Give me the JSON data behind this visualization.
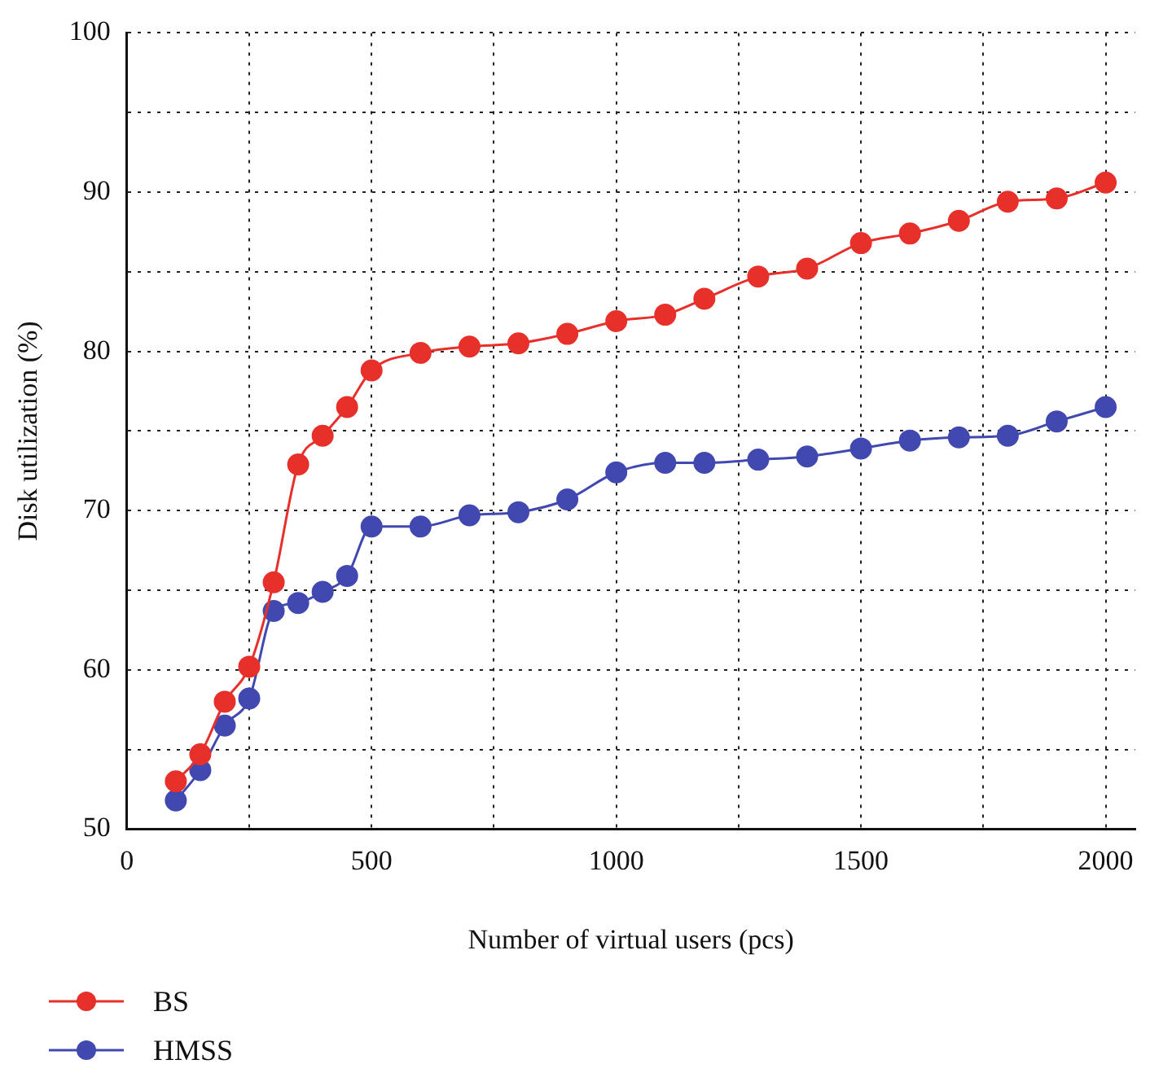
{
  "chart_data": {
    "type": "line",
    "xlabel": "Number of virtual users (pcs)",
    "ylabel": "Disk utilization (%)",
    "xlim": [
      0,
      2060
    ],
    "xticks": [
      0,
      {
        "value": 250,
        "label": null
      },
      500,
      {
        "value": 750,
        "label": null
      },
      1000,
      {
        "value": 1250,
        "label": null
      },
      1500,
      {
        "value": 1750,
        "label": null
      },
      2000
    ],
    "ylim": [
      50,
      100
    ],
    "yticks": [
      50,
      {
        "value": 55,
        "label": null
      },
      60,
      {
        "value": 65,
        "label": null
      },
      70,
      {
        "value": 75,
        "label": null
      },
      80,
      {
        "value": 85,
        "label": null
      },
      90,
      {
        "value": 95,
        "label": null
      },
      100
    ],
    "grid": true,
    "legend": "bottom left",
    "marker": "circle",
    "line_style": "solid",
    "series": [
      {
        "name": "BS",
        "color": "#e8302a",
        "x": [
          100,
          150,
          200,
          250,
          300,
          350,
          400,
          450,
          500,
          600,
          700,
          800,
          900,
          1000,
          1100,
          1180,
          1290,
          1390,
          1500,
          1600,
          1700,
          1800,
          1900,
          2000
        ],
        "values": [
          53.0,
          54.7,
          58.0,
          60.2,
          65.5,
          72.9,
          74.7,
          76.5,
          78.8,
          79.9,
          80.3,
          80.5,
          81.1,
          81.9,
          82.3,
          83.3,
          84.7,
          85.2,
          86.8,
          87.4,
          88.2,
          89.4,
          89.6,
          90.6
        ]
      },
      {
        "name": "HMSS",
        "color": "#4148b0",
        "x": [
          100,
          150,
          200,
          250,
          300,
          350,
          400,
          450,
          500,
          600,
          700,
          800,
          900,
          1000,
          1100,
          1180,
          1290,
          1390,
          1500,
          1600,
          1700,
          1800,
          1900,
          2000
        ],
        "values": [
          51.8,
          53.7,
          56.5,
          58.2,
          63.7,
          64.2,
          64.9,
          65.9,
          69.0,
          69.0,
          69.7,
          69.9,
          70.7,
          72.4,
          73.0,
          73.0,
          73.2,
          73.4,
          73.9,
          74.4,
          74.6,
          74.7,
          75.6,
          76.5
        ]
      }
    ]
  }
}
